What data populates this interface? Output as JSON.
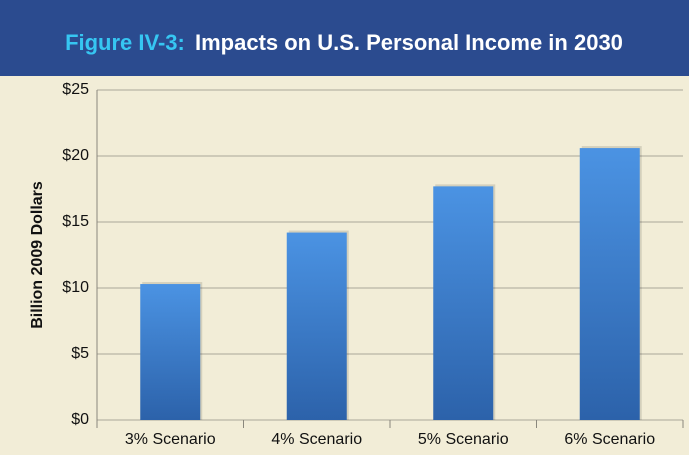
{
  "chart_data": {
    "type": "bar",
    "figure_label": "Figure IV-3:",
    "title": "Impacts on U.S. Personal Income in 2030",
    "y_label": "Billion 2009 Dollars",
    "categories": [
      "3% Scenario",
      "4% Scenario",
      "5% Scenario",
      "6% Scenario"
    ],
    "values": [
      10.3,
      14.2,
      17.7,
      20.6
    ],
    "color": "#3f7fd0",
    "ylim": [
      0,
      25
    ],
    "yticks": [
      {
        "value": 0,
        "label": "$0"
      },
      {
        "value": 5,
        "label": "$5"
      },
      {
        "value": 10,
        "label": "$10"
      },
      {
        "value": 15,
        "label": "$15"
      },
      {
        "value": 20,
        "label": "$20"
      },
      {
        "value": 25,
        "label": "$25"
      }
    ],
    "grid": true
  }
}
